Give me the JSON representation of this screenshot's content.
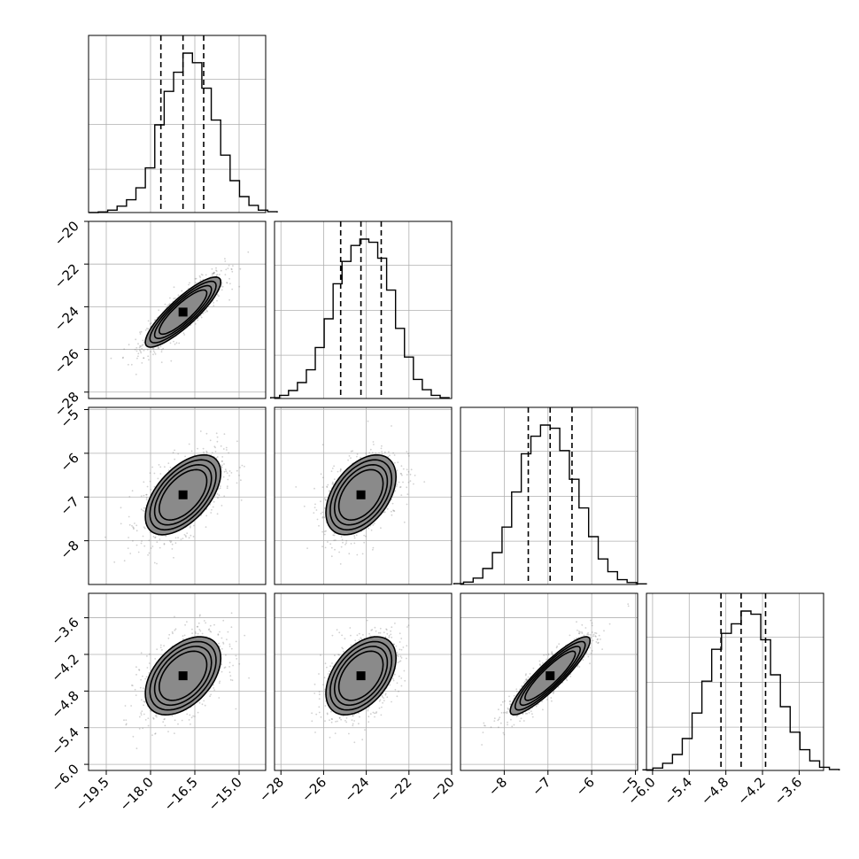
{
  "chart_data": {
    "type": "corner",
    "parameters": [
      {
        "ticks": [
          -19.5,
          -18.0,
          -16.5,
          -15.0
        ],
        "tick_labels": [
          "−19.5",
          "−18.0",
          "−16.5",
          "−15.0"
        ],
        "range": [
          -20.1,
          -14.1
        ],
        "median": -16.9,
        "q16": -17.65,
        "q84": -16.2,
        "hist_peak": -16.9
      },
      {
        "ticks": [
          -28,
          -26,
          -24,
          -22,
          -20
        ],
        "tick_labels": [
          "−28",
          "−26",
          "−24",
          "−22",
          "−20"
        ],
        "range": [
          -28.3,
          -20.0
        ],
        "median": -24.25,
        "q16": -25.2,
        "q84": -23.3,
        "hist_peak": -24.3
      },
      {
        "ticks": [
          -8,
          -7,
          -6,
          -5
        ],
        "tick_labels": [
          "−8",
          "−7",
          "−6",
          "−5"
        ],
        "range": [
          -9.0,
          -4.95
        ],
        "median": -6.95,
        "q16": -7.45,
        "q84": -6.45,
        "hist_peak": -6.95
      },
      {
        "ticks": [
          -6.0,
          -5.4,
          -4.8,
          -4.2,
          -3.6
        ],
        "tick_labels": [
          "−6.0",
          "−5.4",
          "−4.8",
          "−4.2",
          "−3.6"
        ],
        "range": [
          -6.1,
          -3.2
        ],
        "median": -4.55,
        "q16": -4.88,
        "q84": -4.15,
        "hist_peak": -4.55
      }
    ],
    "diagonal_histograms": [
      [
        0,
        0.004,
        0.015,
        0.04,
        0.08,
        0.155,
        0.28,
        0.55,
        0.76,
        0.88,
        1.0,
        0.94,
        0.78,
        0.58,
        0.36,
        0.2,
        0.1,
        0.045,
        0.015,
        0.005
      ],
      [
        0.005,
        0.02,
        0.05,
        0.1,
        0.18,
        0.32,
        0.5,
        0.72,
        0.86,
        0.96,
        1.0,
        0.98,
        0.88,
        0.68,
        0.44,
        0.26,
        0.12,
        0.055,
        0.02,
        0.005
      ],
      [
        0.005,
        0.015,
        0.04,
        0.1,
        0.2,
        0.36,
        0.58,
        0.82,
        0.93,
        1.0,
        0.98,
        0.84,
        0.66,
        0.48,
        0.3,
        0.16,
        0.08,
        0.03,
        0.012,
        0.004
      ],
      [
        0.004,
        0.015,
        0.045,
        0.1,
        0.2,
        0.36,
        0.56,
        0.76,
        0.86,
        0.92,
        1.0,
        0.98,
        0.82,
        0.6,
        0.4,
        0.24,
        0.13,
        0.06,
        0.02,
        0.006
      ]
    ],
    "correlations": [
      [
        1,
        0.86,
        0.55,
        0.45
      ],
      [
        0.86,
        1,
        0.45,
        0.45
      ],
      [
        0.55,
        0.45,
        1,
        0.9
      ],
      [
        0.45,
        0.45,
        0.9,
        1
      ]
    ],
    "sigmas": [
      0.7,
      0.9,
      0.5,
      0.35
    ],
    "contour_levels": [
      0.5,
      1.0,
      1.5,
      2.0
    ],
    "grid": true
  }
}
